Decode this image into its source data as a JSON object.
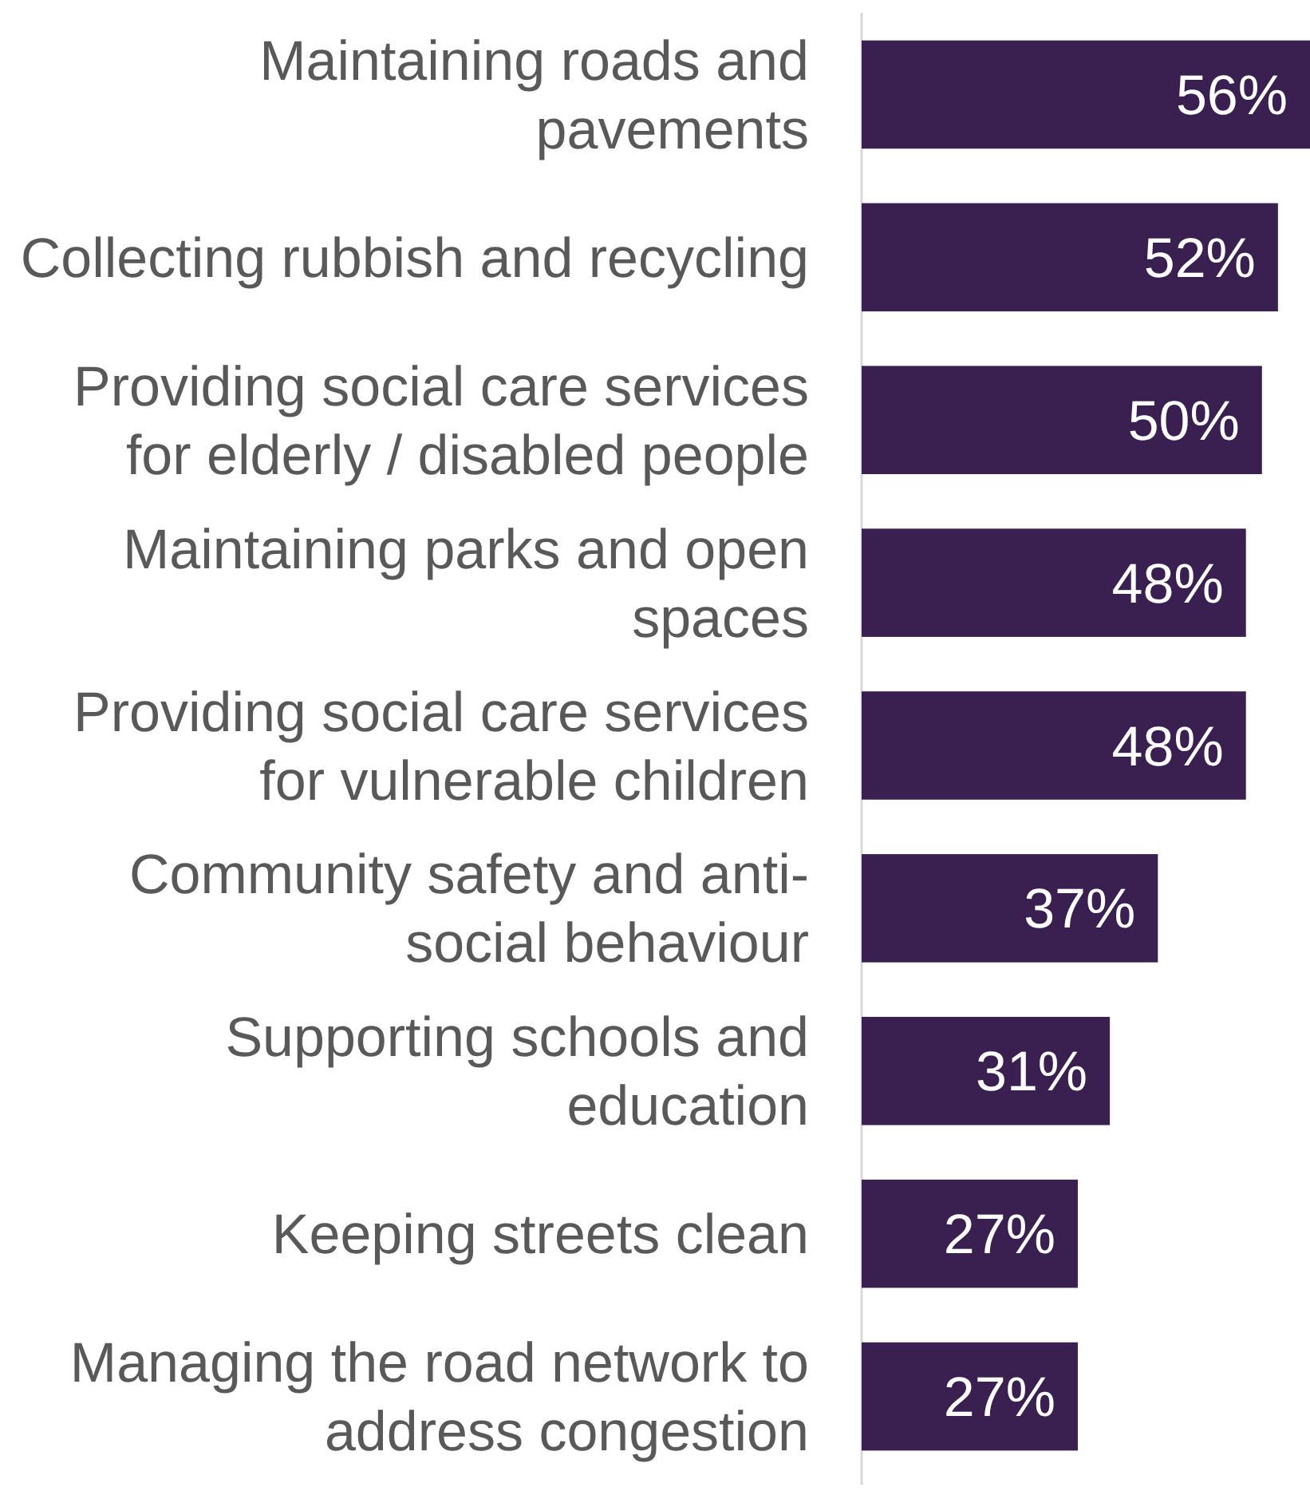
{
  "chart_data": {
    "type": "bar",
    "orientation": "horizontal",
    "categories": [
      "Maintaining roads and pavements",
      "Collecting rubbish and recycling",
      "Providing social care services for elderly / disabled people",
      "Maintaining parks and open spaces",
      "Providing social care services for vulnerable children",
      "Community safety and anti-social behaviour",
      "Supporting schools and education",
      "Keeping streets clean",
      "Managing the road network to address congestion"
    ],
    "values": [
      56,
      52,
      50,
      48,
      48,
      37,
      31,
      27,
      27
    ],
    "value_labels": [
      "56%",
      "52%",
      "50%",
      "48%",
      "48%",
      "37%",
      "31%",
      "27%",
      "27%"
    ],
    "color": "#3a1f51",
    "grid": false
  }
}
